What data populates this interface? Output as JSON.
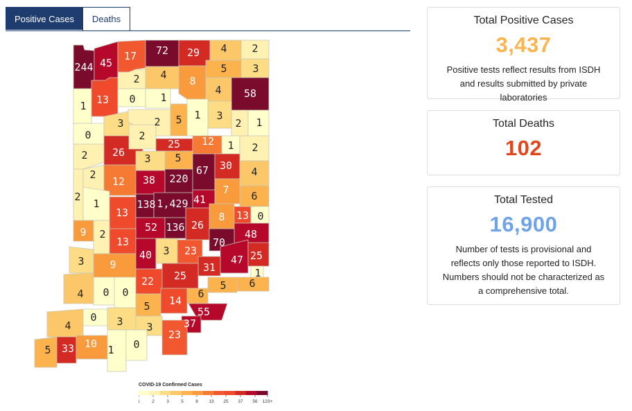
{
  "tabs": [
    {
      "label": "Positive Cases",
      "active": true
    },
    {
      "label": "Deaths",
      "active": false
    }
  ],
  "map": {
    "counties": [
      {
        "id": "lake-top",
        "value": "244",
        "color": "#7a0b2c"
      },
      {
        "id": "porter",
        "value": "45",
        "color": "#b6082b"
      },
      {
        "id": "laporte",
        "value": "17",
        "color": "#f1582f"
      },
      {
        "id": "stjoseph",
        "value": "72",
        "color": "#7a0b2c"
      },
      {
        "id": "elkhart",
        "value": "29",
        "color": "#d42a24"
      },
      {
        "id": "lagrange",
        "value": "4",
        "color": "#fcc768"
      },
      {
        "id": "steuben",
        "value": "2",
        "color": "#fef1b1"
      },
      {
        "id": "starke",
        "value": "2",
        "color": "#fef1b1"
      },
      {
        "id": "marshall",
        "value": "4",
        "color": "#fcc768"
      },
      {
        "id": "kosciusko",
        "value": "8",
        "color": "#f99b3d"
      },
      {
        "id": "noble",
        "value": "5",
        "color": "#fcb24d"
      },
      {
        "id": "dekalb",
        "value": "3",
        "color": "#fddc86"
      },
      {
        "id": "jasper",
        "value": "1",
        "color": "#ffffcc"
      },
      {
        "id": "newton",
        "value": "13",
        "color": "#ef4a2c"
      },
      {
        "id": "pulaski",
        "value": "0",
        "color": "#ffffcc"
      },
      {
        "id": "fulton",
        "value": "1",
        "color": "#ffffcc"
      },
      {
        "id": "whitley",
        "value": "4",
        "color": "#fcc768"
      },
      {
        "id": "allen",
        "value": "58",
        "color": "#7a0b2c"
      },
      {
        "id": "benton",
        "value": "0",
        "color": "#ffffcc"
      },
      {
        "id": "white",
        "value": "3",
        "color": "#fddc86"
      },
      {
        "id": "cass",
        "value": "2",
        "color": "#fef1b1"
      },
      {
        "id": "miami",
        "value": "5",
        "color": "#fcb24d"
      },
      {
        "id": "wabash",
        "value": "1",
        "color": "#ffffcc"
      },
      {
        "id": "huntington",
        "value": "3",
        "color": "#fddc86"
      },
      {
        "id": "wells",
        "value": "2",
        "color": "#fef1b1"
      },
      {
        "id": "adams",
        "value": "1",
        "color": "#ffffcc"
      },
      {
        "id": "warren",
        "value": "2",
        "color": "#fef1b1"
      },
      {
        "id": "tippecanoe",
        "value": "26",
        "color": "#d42a24"
      },
      {
        "id": "carroll",
        "value": "2",
        "color": "#fef1b1"
      },
      {
        "id": "howard",
        "value": "25",
        "color": "#d42a24"
      },
      {
        "id": "grant",
        "value": "12",
        "color": "#f67934"
      },
      {
        "id": "blackford",
        "value": "1",
        "color": "#ffffcc"
      },
      {
        "id": "jay",
        "value": "2",
        "color": "#fef1b1"
      },
      {
        "id": "fountain",
        "value": "2",
        "color": "#fef1b1"
      },
      {
        "id": "clinton",
        "value": "3",
        "color": "#fddc86"
      },
      {
        "id": "tipton",
        "value": "5",
        "color": "#fcb24d"
      },
      {
        "id": "madison",
        "value": "67",
        "color": "#7a0b2c"
      },
      {
        "id": "delaware",
        "value": "30",
        "color": "#d42a24"
      },
      {
        "id": "randolph",
        "value": "4",
        "color": "#fcc768"
      },
      {
        "id": "montgomery",
        "value": "12",
        "color": "#f67934"
      },
      {
        "id": "boone",
        "value": "38",
        "color": "#b6082b"
      },
      {
        "id": "hamilton",
        "value": "220",
        "color": "#7a0b2c"
      },
      {
        "id": "vermillion",
        "value": "2",
        "color": "#fef1b1"
      },
      {
        "id": "parke",
        "value": "1",
        "color": "#ffffcc"
      },
      {
        "id": "henry",
        "value": "7",
        "color": "#f99b3d"
      },
      {
        "id": "wayne",
        "value": "6",
        "color": "#fcb24d"
      },
      {
        "id": "putnam",
        "value": "13",
        "color": "#ef4a2c"
      },
      {
        "id": "hendricks",
        "value": "138",
        "color": "#7a0b2c"
      },
      {
        "id": "marion",
        "value": "1,429",
        "color": "#7a0b2c"
      },
      {
        "id": "hancock",
        "value": "41",
        "color": "#b6082b"
      },
      {
        "id": "rush",
        "value": "8",
        "color": "#f99b3d"
      },
      {
        "id": "fayette",
        "value": "13",
        "color": "#ef4a2c"
      },
      {
        "id": "union",
        "value": "0",
        "color": "#ffffcc"
      },
      {
        "id": "vigo",
        "value": "9",
        "color": "#f99b3d"
      },
      {
        "id": "clay",
        "value": "2",
        "color": "#fef1b1"
      },
      {
        "id": "morgan",
        "value": "52",
        "color": "#b6082b"
      },
      {
        "id": "johnson",
        "value": "136",
        "color": "#7a0b2c"
      },
      {
        "id": "shelby",
        "value": "26",
        "color": "#d42a24"
      },
      {
        "id": "franklin",
        "value": "48",
        "color": "#b6082b"
      },
      {
        "id": "owen",
        "value": "13",
        "color": "#ef4a2c"
      },
      {
        "id": "decatur",
        "value": "70",
        "color": "#7a0b2c"
      },
      {
        "id": "sullivan",
        "value": "3",
        "color": "#fddc86"
      },
      {
        "id": "greene",
        "value": "9",
        "color": "#f99b3d"
      },
      {
        "id": "monroe",
        "value": "40",
        "color": "#b6082b"
      },
      {
        "id": "brown",
        "value": "3",
        "color": "#fddc86"
      },
      {
        "id": "bartholomew",
        "value": "23",
        "color": "#f1582f"
      },
      {
        "id": "ripley",
        "value": "47",
        "color": "#b6082b"
      },
      {
        "id": "dearborn",
        "value": "25",
        "color": "#d42a24"
      },
      {
        "id": "ohio",
        "value": "1",
        "color": "#ffffcc"
      },
      {
        "id": "jennings",
        "value": "31",
        "color": "#d42a24"
      },
      {
        "id": "knox",
        "value": "4",
        "color": "#fcc768"
      },
      {
        "id": "daviess",
        "value": "0",
        "color": "#ffffcc"
      },
      {
        "id": "martin",
        "value": "0",
        "color": "#ffffcc"
      },
      {
        "id": "lawrence",
        "value": "22",
        "color": "#ef4a2c"
      },
      {
        "id": "jackson",
        "value": "25",
        "color": "#d42a24"
      },
      {
        "id": "jefferson",
        "value": "5",
        "color": "#fcb24d"
      },
      {
        "id": "switzerland",
        "value": "6",
        "color": "#fcb24d"
      },
      {
        "id": "orange",
        "value": "5",
        "color": "#fcb24d"
      },
      {
        "id": "washington",
        "value": "14",
        "color": "#ef4a2c"
      },
      {
        "id": "scott",
        "value": "6",
        "color": "#fcb24d"
      },
      {
        "id": "clark",
        "value": "55",
        "color": "#b6082b"
      },
      {
        "id": "pike",
        "value": "0",
        "color": "#ffffcc"
      },
      {
        "id": "dubois",
        "value": "3",
        "color": "#fddc86"
      },
      {
        "id": "gibson",
        "value": "4",
        "color": "#fcc768"
      },
      {
        "id": "crawford",
        "value": "3",
        "color": "#fddc86"
      },
      {
        "id": "floyd",
        "value": "37",
        "color": "#b6082b"
      },
      {
        "id": "harrison",
        "value": "23",
        "color": "#f1582f"
      },
      {
        "id": "posey",
        "value": "5",
        "color": "#fcb24d"
      },
      {
        "id": "vanderburgh",
        "value": "33",
        "color": "#d42a24"
      },
      {
        "id": "warrick",
        "value": "10",
        "color": "#f99b3d"
      },
      {
        "id": "spencer",
        "value": "1",
        "color": "#ffffcc"
      },
      {
        "id": "perry",
        "value": "0",
        "color": "#ffffcc"
      }
    ]
  },
  "legend": {
    "title": "COVID-19 Confirmed Cases",
    "ticks": [
      "1",
      "2",
      "3",
      "5",
      "8",
      "13",
      "25",
      "37",
      "56",
      "123+"
    ],
    "colors": [
      "#ffffcc",
      "#fef1b1",
      "#fddc86",
      "#fcc768",
      "#fcb24d",
      "#f99b3d",
      "#f67934",
      "#f1582f",
      "#ef4a2c",
      "#d42a24",
      "#b6082b",
      "#7a0b2c"
    ]
  },
  "cards": {
    "positive": {
      "title": "Total Positive Cases",
      "value": "3,437",
      "note": "Positive tests reflect results from ISDH and results submitted by private laboratories",
      "color": "#fbb44f"
    },
    "deaths": {
      "title": "Total Deaths",
      "value": "102",
      "color": "#e2461d"
    },
    "tested": {
      "title": "Total Tested",
      "value": "16,900",
      "note": "Number of tests is provisional and reflects only those reported to ISDH. Numbers should not be characterized as a comprehensive total.",
      "color": "#6fa3e6"
    }
  }
}
